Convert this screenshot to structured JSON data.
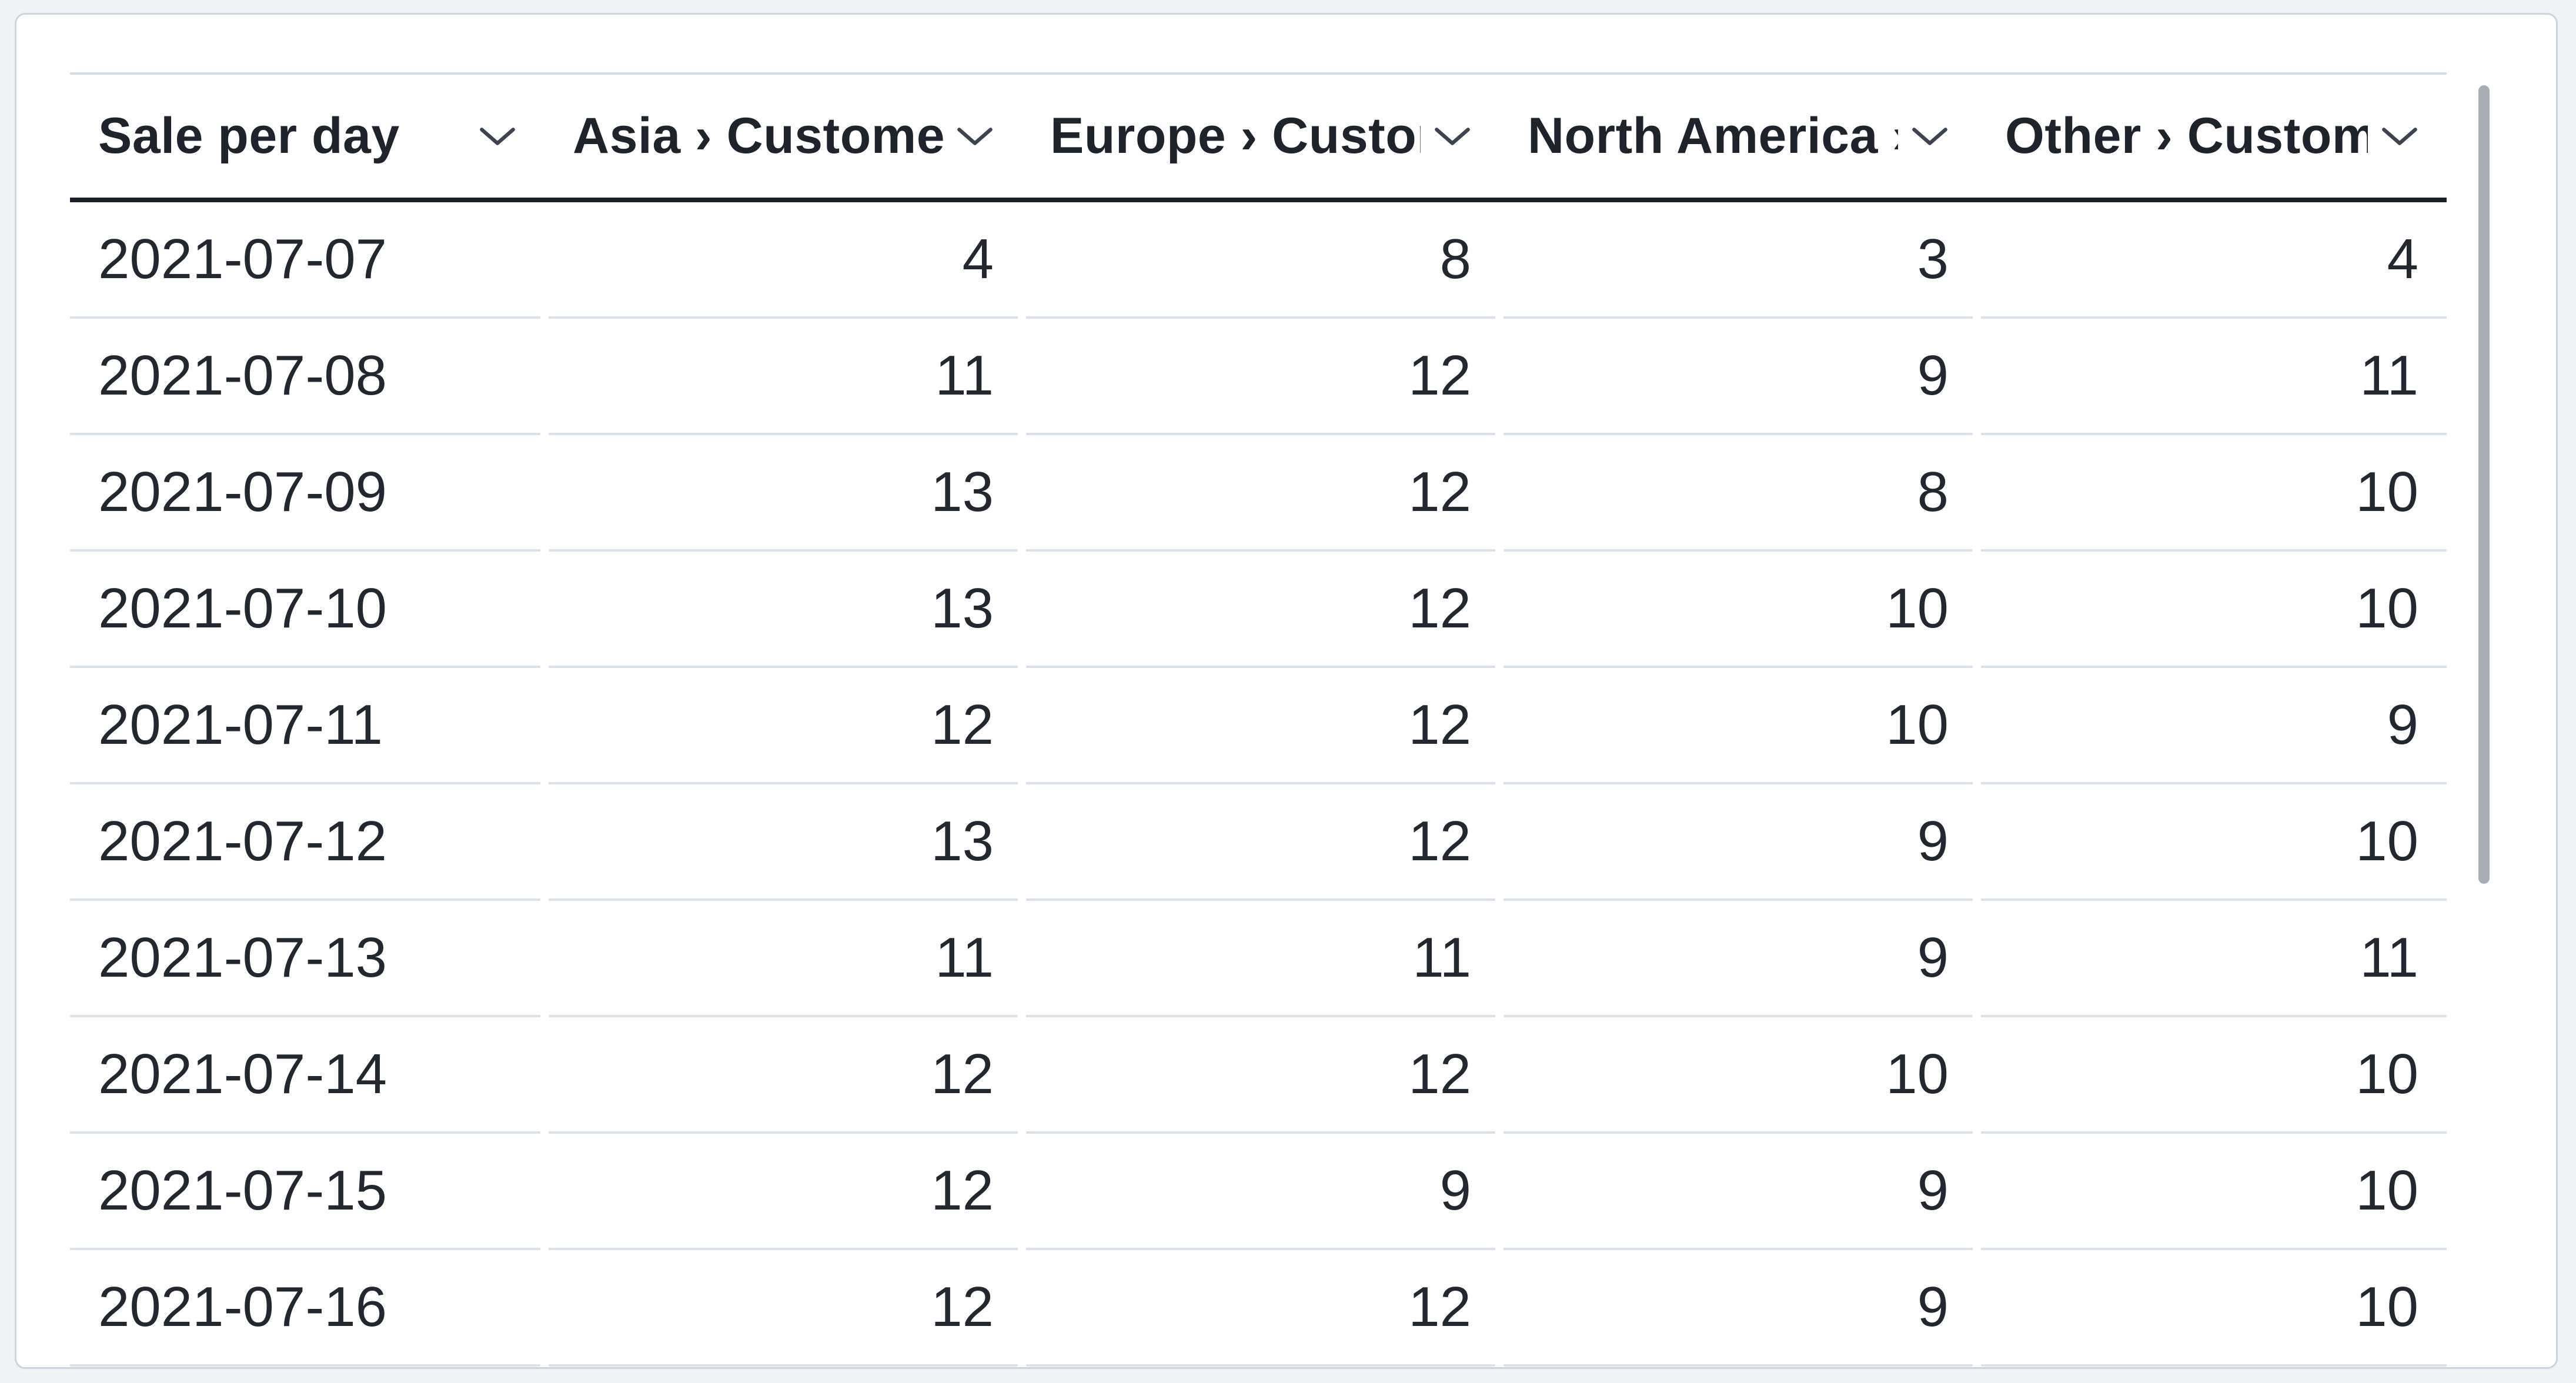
{
  "page": {
    "background": "#f2f3f7"
  },
  "card": {
    "background": "#ffffff",
    "border_color": "#ccd4df"
  },
  "colors": {
    "header_underline": "#1a1e27",
    "header_top_border": "#d6dde7",
    "row_divider": "#dce1ea",
    "header_text": "#1f232c",
    "cell_text": "#23272f",
    "chevron": "#3d4450",
    "scrollbar_thumb": "#a9aeb6"
  },
  "icons": {
    "header_dropdown": "chevron-down-icon"
  },
  "table": {
    "columns": [
      {
        "id": "date",
        "label": "Sale per day",
        "align": "left"
      },
      {
        "id": "asia",
        "label": "Asia › Customers",
        "align": "right"
      },
      {
        "id": "europe",
        "label": "Europe › Customers",
        "align": "right"
      },
      {
        "id": "north_america",
        "label": "North America › Customers",
        "align": "right"
      },
      {
        "id": "other",
        "label": "Other › Customers",
        "align": "right"
      }
    ],
    "rows": [
      [
        "2021-07-07",
        "4",
        "8",
        "3",
        "4"
      ],
      [
        "2021-07-08",
        "11",
        "12",
        "9",
        "11"
      ],
      [
        "2021-07-09",
        "13",
        "12",
        "8",
        "10"
      ],
      [
        "2021-07-10",
        "13",
        "12",
        "10",
        "10"
      ],
      [
        "2021-07-11",
        "12",
        "12",
        "10",
        "9"
      ],
      [
        "2021-07-12",
        "13",
        "12",
        "9",
        "10"
      ],
      [
        "2021-07-13",
        "11",
        "11",
        "9",
        "11"
      ],
      [
        "2021-07-14",
        "12",
        "12",
        "10",
        "10"
      ],
      [
        "2021-07-15",
        "12",
        "9",
        "9",
        "10"
      ],
      [
        "2021-07-16",
        "12",
        "12",
        "9",
        "10"
      ]
    ]
  },
  "chart_data": {
    "type": "table",
    "title": "Sale per day",
    "categories": [
      "2021-07-07",
      "2021-07-08",
      "2021-07-09",
      "2021-07-10",
      "2021-07-11",
      "2021-07-12",
      "2021-07-13",
      "2021-07-14",
      "2021-07-15",
      "2021-07-16"
    ],
    "series": [
      {
        "name": "Asia › Customers",
        "values": [
          4,
          11,
          13,
          13,
          12,
          13,
          11,
          12,
          12,
          12
        ]
      },
      {
        "name": "Europe › Customers",
        "values": [
          8,
          12,
          12,
          12,
          12,
          12,
          11,
          12,
          9,
          12
        ]
      },
      {
        "name": "North America › Customers",
        "values": [
          3,
          9,
          8,
          10,
          10,
          9,
          9,
          10,
          9,
          9
        ]
      },
      {
        "name": "Other › Customers",
        "values": [
          4,
          11,
          10,
          10,
          9,
          10,
          11,
          10,
          10,
          10
        ]
      }
    ]
  }
}
